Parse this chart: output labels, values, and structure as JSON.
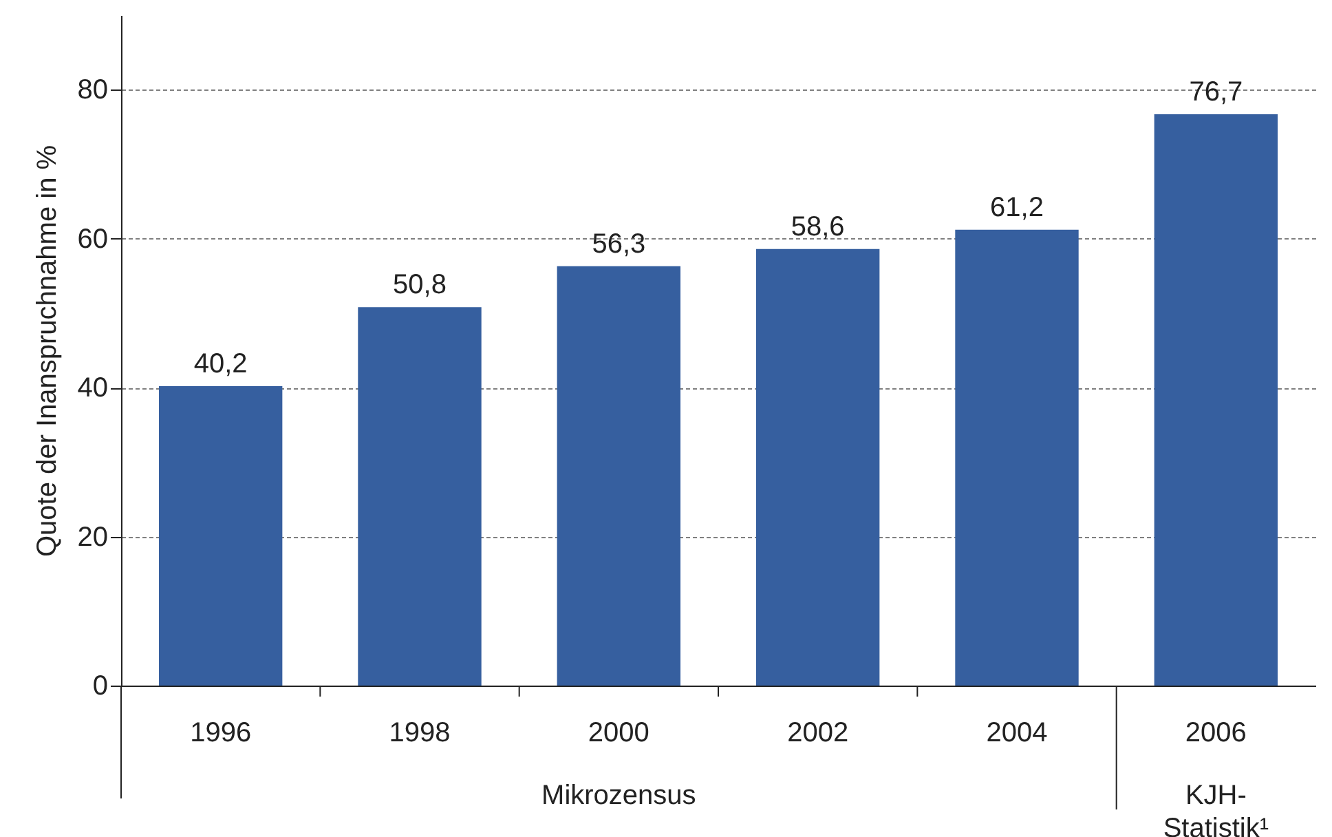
{
  "chart_data": {
    "type": "bar",
    "ylabel": "Quote der Inanspruchnahme in %",
    "categories": [
      "1996",
      "1998",
      "2000",
      "2002",
      "2004",
      "2006"
    ],
    "values": [
      40.2,
      50.8,
      56.3,
      58.6,
      61.2,
      76.7
    ],
    "value_labels": [
      "40,2",
      "50,8",
      "56,3",
      "58,6",
      "61,2",
      "76,7"
    ],
    "color": "#365f9f",
    "ylim": [
      0,
      90
    ],
    "yticks": [
      0,
      20,
      40,
      60,
      80
    ],
    "grid": "y",
    "annotations": [
      "Mikrozensus",
      "KJH-Statistik¹"
    ]
  }
}
